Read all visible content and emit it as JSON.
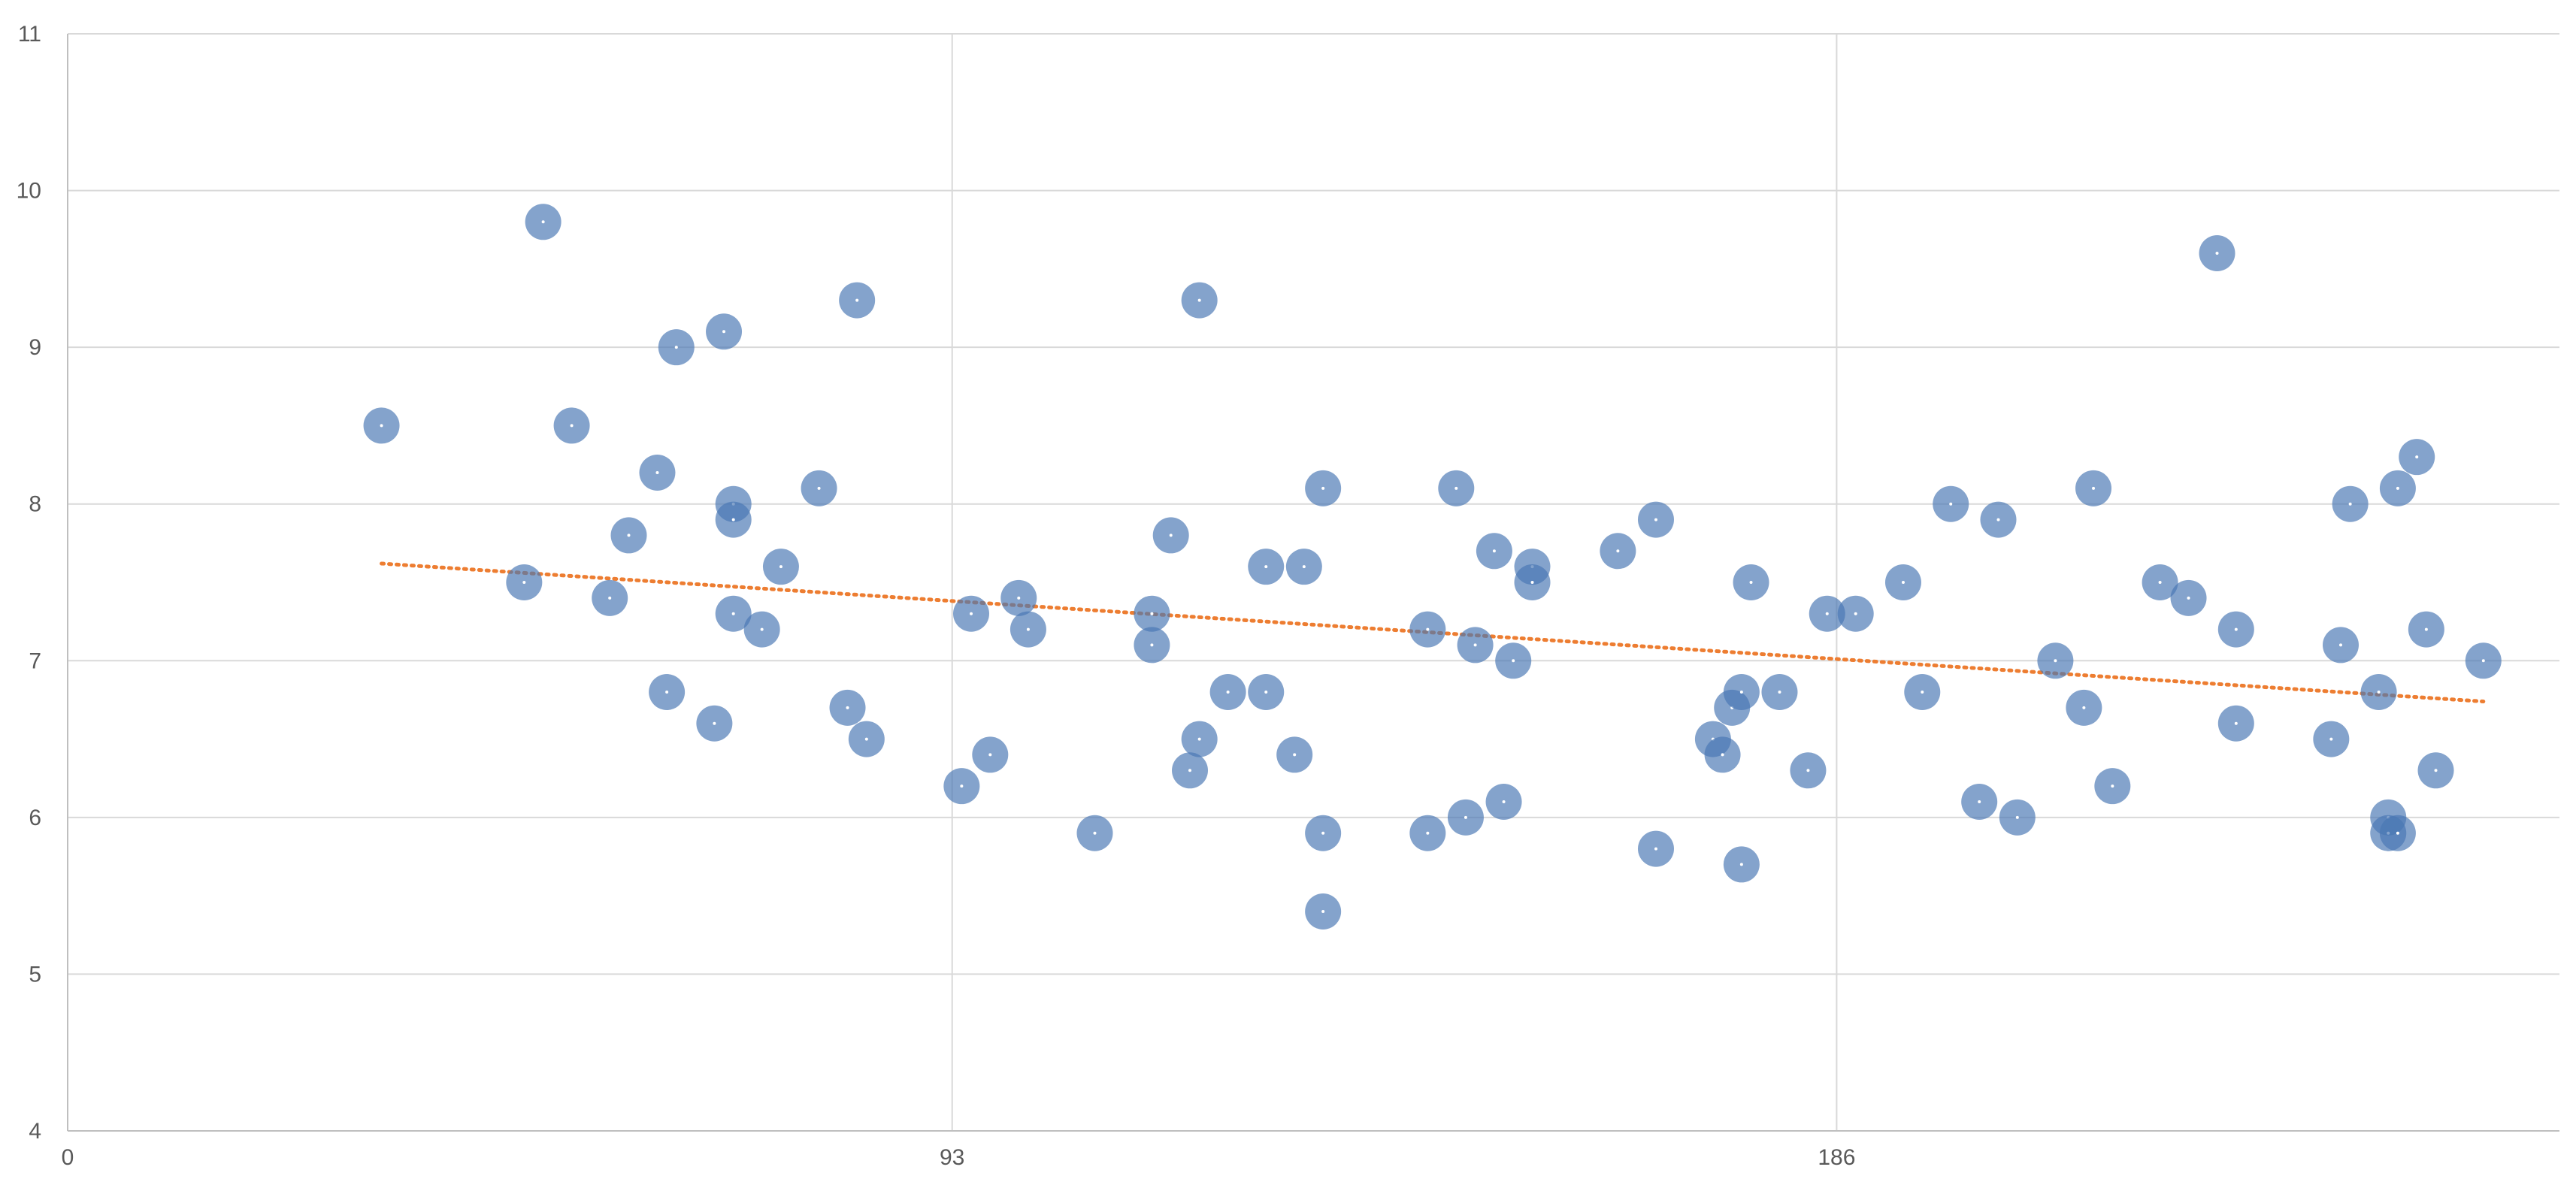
{
  "chart_data": {
    "type": "scatter",
    "title": "",
    "xlabel": "",
    "ylabel": "",
    "xlim": [
      0,
      262
    ],
    "ylim": [
      4,
      11
    ],
    "x_ticks": [
      0,
      93,
      186
    ],
    "y_ticks": [
      4,
      5,
      6,
      7,
      8,
      9,
      10,
      11
    ],
    "x_tick_labels": [
      "0",
      "93",
      "186"
    ],
    "y_tick_labels": [
      "4",
      "5",
      "6",
      "7",
      "8",
      "9",
      "10",
      "11"
    ],
    "grid": true,
    "legend": "none",
    "series": [
      {
        "marker_color": "#4a77b4",
        "points": [
          {
            "x": 33,
            "y": 8.5
          },
          {
            "x": 48,
            "y": 7.5
          },
          {
            "x": 50,
            "y": 9.8
          },
          {
            "x": 53,
            "y": 8.5
          },
          {
            "x": 57,
            "y": 7.4
          },
          {
            "x": 59,
            "y": 7.8
          },
          {
            "x": 62,
            "y": 8.2
          },
          {
            "x": 63,
            "y": 6.8
          },
          {
            "x": 64,
            "y": 9.0
          },
          {
            "x": 68,
            "y": 6.6
          },
          {
            "x": 69,
            "y": 9.1
          },
          {
            "x": 70,
            "y": 8.0
          },
          {
            "x": 70,
            "y": 7.9
          },
          {
            "x": 70,
            "y": 7.3
          },
          {
            "x": 73,
            "y": 7.2
          },
          {
            "x": 75,
            "y": 7.6
          },
          {
            "x": 79,
            "y": 8.1
          },
          {
            "x": 82,
            "y": 6.7
          },
          {
            "x": 83,
            "y": 9.3
          },
          {
            "x": 84,
            "y": 6.5
          },
          {
            "x": 94,
            "y": 6.2
          },
          {
            "x": 95,
            "y": 7.3
          },
          {
            "x": 97,
            "y": 6.4
          },
          {
            "x": 100,
            "y": 7.4
          },
          {
            "x": 101,
            "y": 7.2
          },
          {
            "x": 108,
            "y": 5.9
          },
          {
            "x": 114,
            "y": 7.3
          },
          {
            "x": 114,
            "y": 7.1
          },
          {
            "x": 116,
            "y": 7.8
          },
          {
            "x": 118,
            "y": 6.3
          },
          {
            "x": 119,
            "y": 6.5
          },
          {
            "x": 119,
            "y": 9.3
          },
          {
            "x": 122,
            "y": 6.8
          },
          {
            "x": 126,
            "y": 6.8
          },
          {
            "x": 126,
            "y": 7.6
          },
          {
            "x": 129,
            "y": 6.4
          },
          {
            "x": 130,
            "y": 7.6
          },
          {
            "x": 132,
            "y": 8.1
          },
          {
            "x": 132,
            "y": 5.9
          },
          {
            "x": 132,
            "y": 5.4
          },
          {
            "x": 143,
            "y": 7.2
          },
          {
            "x": 143,
            "y": 5.9
          },
          {
            "x": 146,
            "y": 8.1
          },
          {
            "x": 147,
            "y": 6.0
          },
          {
            "x": 148,
            "y": 7.1
          },
          {
            "x": 150,
            "y": 7.7
          },
          {
            "x": 151,
            "y": 6.1
          },
          {
            "x": 152,
            "y": 7.0
          },
          {
            "x": 154,
            "y": 7.6
          },
          {
            "x": 154,
            "y": 7.5
          },
          {
            "x": 163,
            "y": 7.7
          },
          {
            "x": 167,
            "y": 7.9
          },
          {
            "x": 167,
            "y": 5.8
          },
          {
            "x": 173,
            "y": 6.5
          },
          {
            "x": 174,
            "y": 6.4
          },
          {
            "x": 175,
            "y": 6.7
          },
          {
            "x": 176,
            "y": 6.8
          },
          {
            "x": 176,
            "y": 5.7
          },
          {
            "x": 177,
            "y": 7.5
          },
          {
            "x": 180,
            "y": 6.8
          },
          {
            "x": 183,
            "y": 6.3
          },
          {
            "x": 185,
            "y": 7.3
          },
          {
            "x": 188,
            "y": 7.3
          },
          {
            "x": 193,
            "y": 7.5
          },
          {
            "x": 195,
            "y": 6.8
          },
          {
            "x": 198,
            "y": 8.0
          },
          {
            "x": 201,
            "y": 6.1
          },
          {
            "x": 203,
            "y": 7.9
          },
          {
            "x": 205,
            "y": 6.0
          },
          {
            "x": 209,
            "y": 7.0
          },
          {
            "x": 212,
            "y": 6.7
          },
          {
            "x": 213,
            "y": 8.1
          },
          {
            "x": 215,
            "y": 6.2
          },
          {
            "x": 220,
            "y": 7.5
          },
          {
            "x": 223,
            "y": 7.4
          },
          {
            "x": 226,
            "y": 9.6
          },
          {
            "x": 228,
            "y": 7.2
          },
          {
            "x": 228,
            "y": 6.6
          },
          {
            "x": 238,
            "y": 6.5
          },
          {
            "x": 239,
            "y": 7.1
          },
          {
            "x": 240,
            "y": 8.0
          },
          {
            "x": 243,
            "y": 6.8
          },
          {
            "x": 244,
            "y": 6.0
          },
          {
            "x": 244,
            "y": 5.9
          },
          {
            "x": 245,
            "y": 8.1
          },
          {
            "x": 245,
            "y": 5.9
          },
          {
            "x": 247,
            "y": 8.3
          },
          {
            "x": 248,
            "y": 7.2
          },
          {
            "x": 249,
            "y": 6.3
          },
          {
            "x": 254,
            "y": 7.0
          }
        ]
      }
    ],
    "trendline": {
      "style": "dotted",
      "color": "#ed7d31",
      "x_start": 33,
      "y_start": 7.62,
      "x_end": 254,
      "y_end": 6.74
    }
  }
}
